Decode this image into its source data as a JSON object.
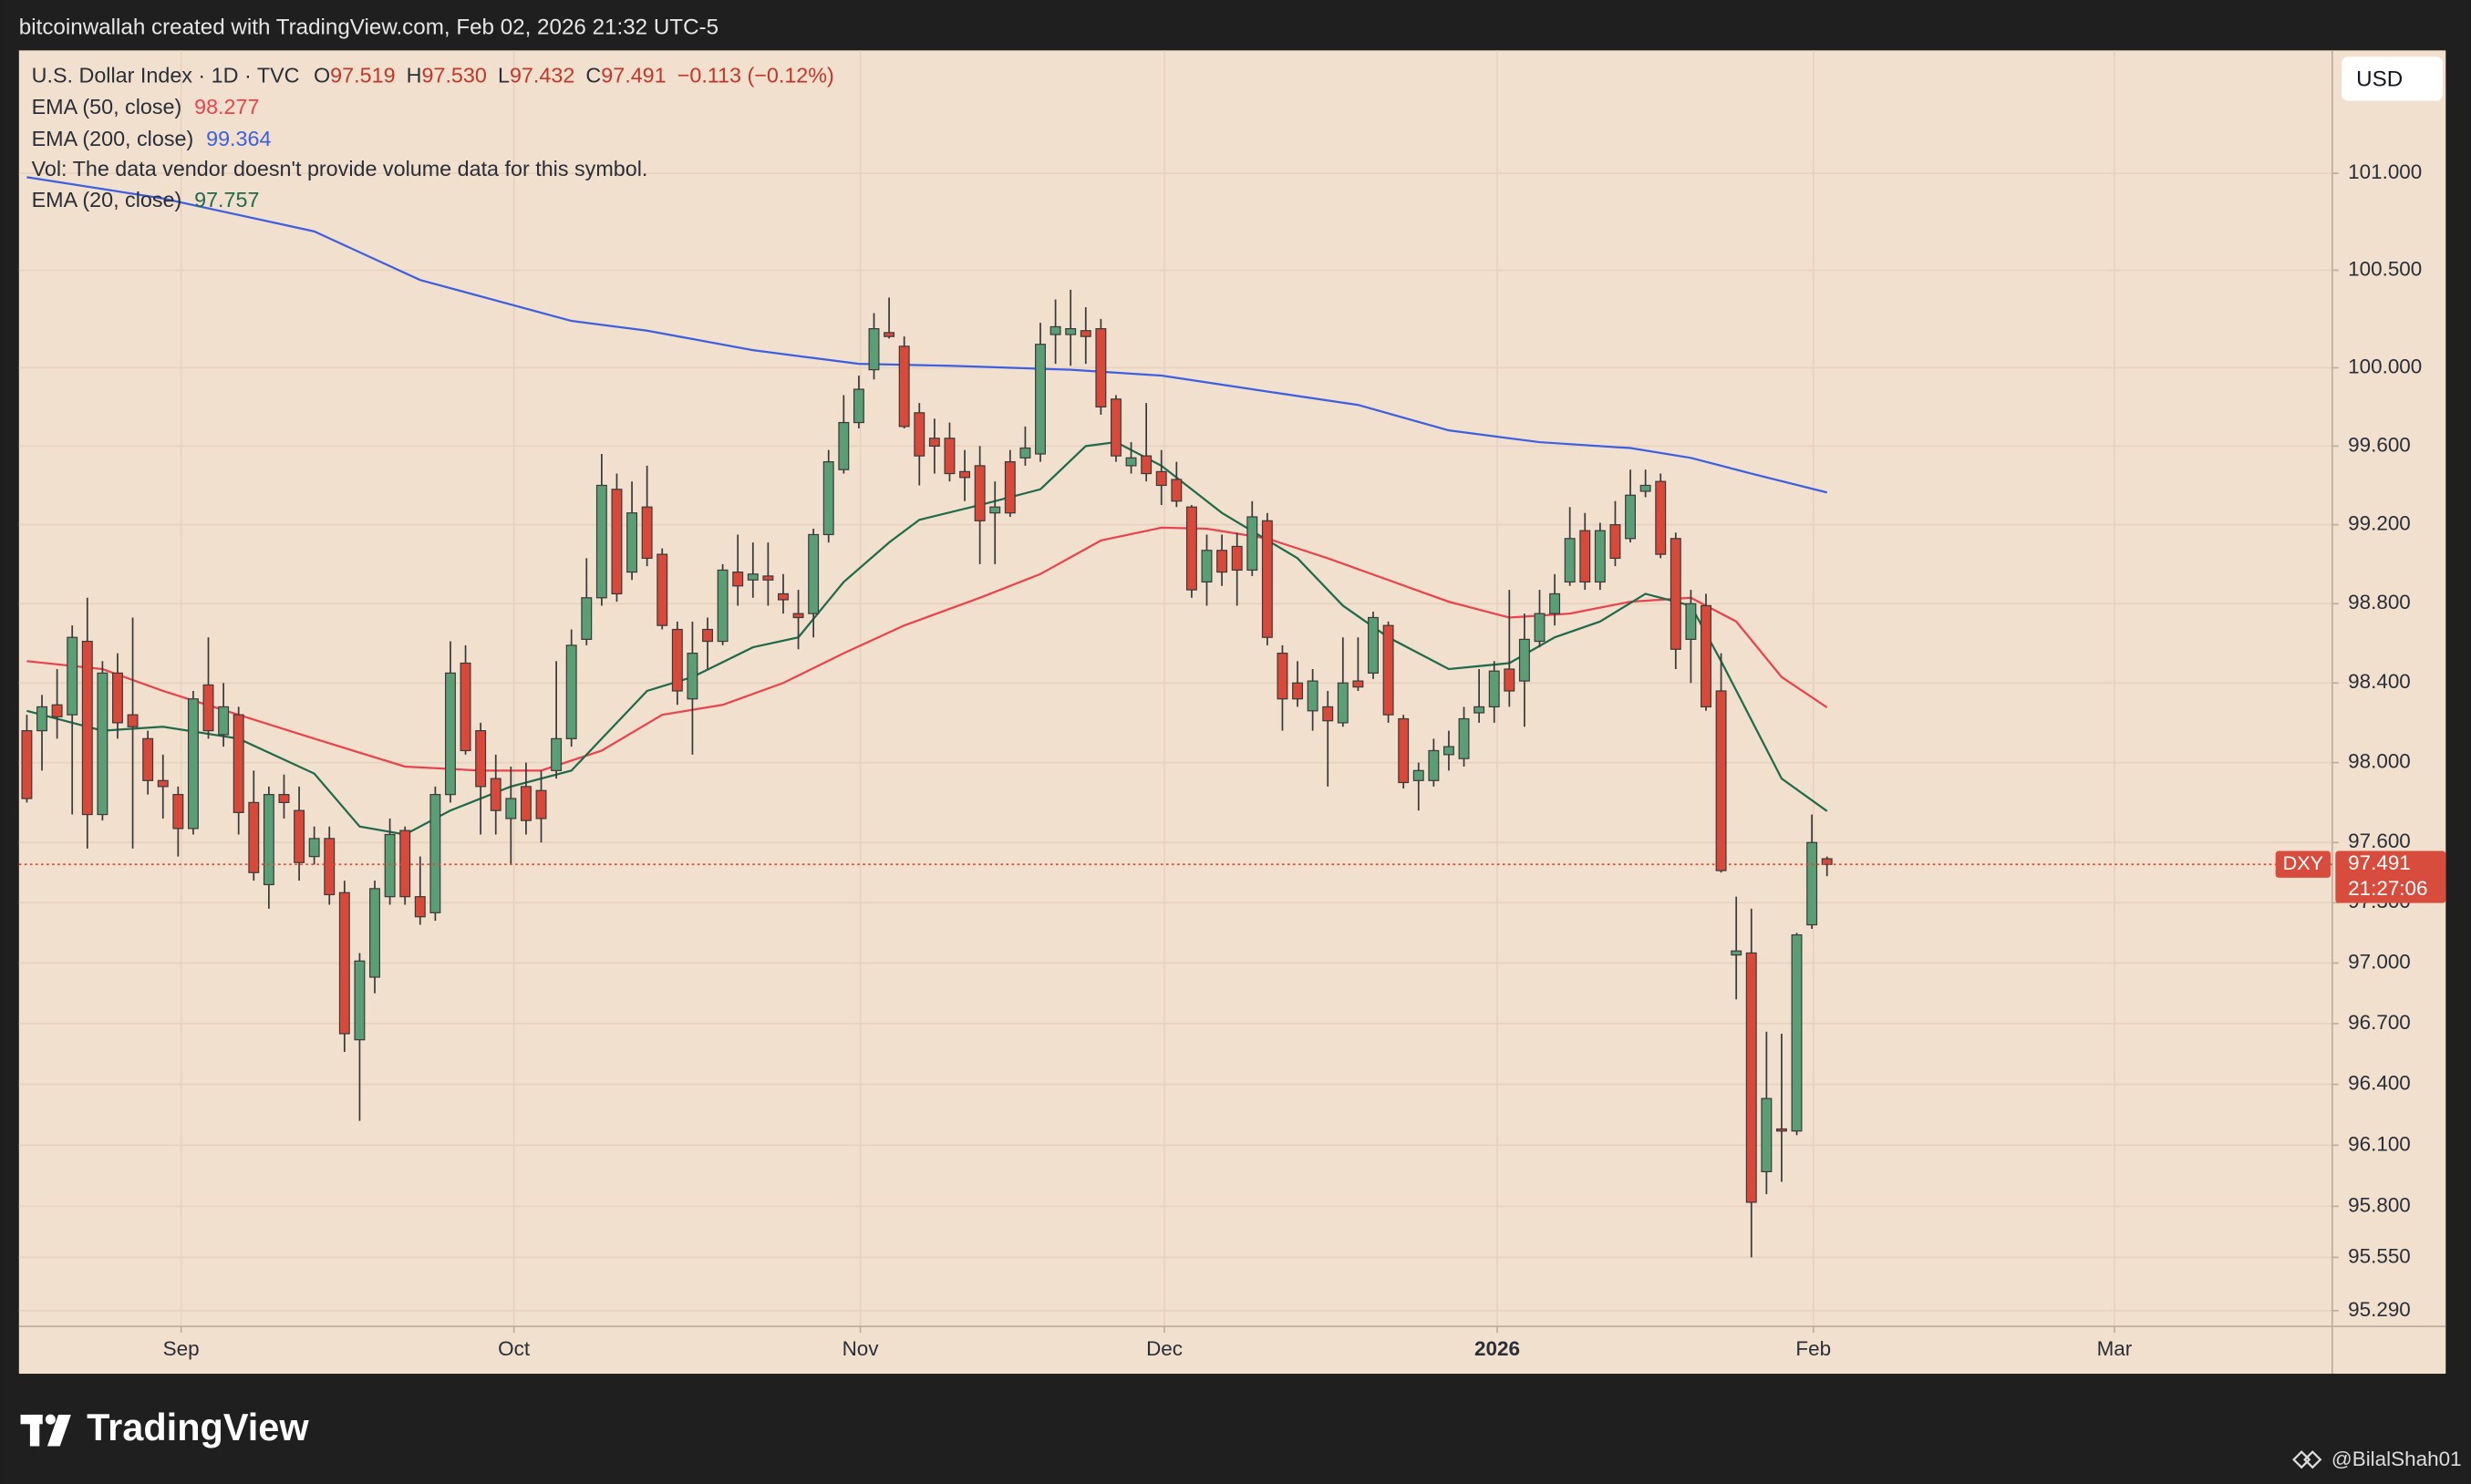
{
  "chart_data": {
    "type": "candlestick",
    "credit": "bitcoinwallah created with TradingView.com, Feb 02, 2026 21:32 UTC-5",
    "title": "U.S. Dollar Index · 1D · TVC",
    "ohlc_labels": [
      {
        "key": "O",
        "label": "97.519"
      },
      {
        "key": "H",
        "label": "97.530"
      },
      {
        "key": "L",
        "label": "97.432"
      },
      {
        "key": "C",
        "label": "97.491"
      }
    ],
    "change": "−0.113 (−0.12%)",
    "volume_note": "Vol: The data vendor doesn't provide volume data for this symbol.",
    "currency": "USD",
    "symbol": "DXY",
    "countdown": "21:27:06",
    "brand": "TradingView",
    "watermark": "@BilalShah01",
    "up_color": "#5a9e75",
    "down_color": "#d9493a",
    "log_scale": true,
    "grid": true,
    "x": [
      0,
      1,
      2,
      3,
      4,
      5,
      6,
      7,
      8,
      9,
      10,
      11,
      12,
      13,
      14,
      15,
      16,
      17,
      18,
      19,
      20,
      21,
      22,
      23,
      24,
      25,
      26,
      27,
      28,
      29,
      30,
      31,
      32,
      33,
      34,
      35,
      36,
      37,
      38,
      39,
      40,
      41,
      42,
      43,
      44,
      45,
      46,
      47,
      48,
      49,
      50,
      51,
      52,
      53,
      54,
      55,
      56,
      57,
      58,
      59,
      60,
      61,
      62,
      63,
      64,
      65,
      66,
      67,
      68,
      69,
      70,
      71,
      72,
      73,
      74,
      75,
      76,
      77,
      78,
      79,
      80,
      81,
      82,
      83,
      84,
      85,
      86,
      87,
      88,
      89,
      90,
      91,
      92,
      93,
      94,
      95,
      96,
      97,
      98,
      99,
      100,
      101,
      102,
      103,
      104,
      105,
      106,
      107,
      108,
      109,
      110,
      111,
      112,
      113,
      114,
      115,
      116,
      117,
      118,
      119
    ],
    "open": [
      98.16,
      98.16,
      98.29,
      98.24,
      98.61,
      97.74,
      98.45,
      98.24,
      98.12,
      97.91,
      97.84,
      97.67,
      98.39,
      98.14,
      98.24,
      97.8,
      97.39,
      97.84,
      97.76,
      97.53,
      97.62,
      97.35,
      96.62,
      96.93,
      97.33,
      97.66,
      97.33,
      97.25,
      97.84,
      98.5,
      98.16,
      97.92,
      97.72,
      97.88,
      97.86,
      97.96,
      98.12,
      98.62,
      98.83,
      99.38,
      98.96,
      99.29,
      99.05,
      98.67,
      98.32,
      98.67,
      98.61,
      98.96,
      98.92,
      98.94,
      98.85,
      98.75,
      98.75,
      99.15,
      99.48,
      99.72,
      99.99,
      100.18,
      100.11,
      99.77,
      99.64,
      99.64,
      99.47,
      99.5,
      99.26,
      99.52,
      99.54,
      99.56,
      100.17,
      100.17,
      100.19,
      100.2,
      99.84,
      99.5,
      99.55,
      99.47,
      99.43,
      99.29,
      98.91,
      99.07,
      99.09,
      98.97,
      99.22,
      98.55,
      98.4,
      98.26,
      98.28,
      98.2,
      98.41,
      98.45,
      98.69,
      98.22,
      97.91,
      97.91,
      98.04,
      98.02,
      98.25,
      98.28,
      98.47,
      98.41,
      98.61,
      98.75,
      98.91,
      99.17,
      98.91,
      99.2,
      99.13,
      99.37,
      99.42,
      99.13,
      98.62,
      98.79,
      98.36,
      97.04,
      97.05,
      95.97,
      96.18,
      96.17,
      97.19,
      97.519
    ],
    "high": [
      98.24,
      98.34,
      98.47,
      98.69,
      98.83,
      98.51,
      98.55,
      98.73,
      98.16,
      98.04,
      97.88,
      98.36,
      98.63,
      98.4,
      98.28,
      97.96,
      97.88,
      97.94,
      97.88,
      97.68,
      97.68,
      97.41,
      97.05,
      97.41,
      97.72,
      97.68,
      97.53,
      97.88,
      98.61,
      98.59,
      98.2,
      98.04,
      97.98,
      98.0,
      97.96,
      98.51,
      98.67,
      99.03,
      99.56,
      99.46,
      99.42,
      99.5,
      99.08,
      98.71,
      98.71,
      98.73,
      99.0,
      99.15,
      99.11,
      99.11,
      98.95,
      98.87,
      99.18,
      99.58,
      99.86,
      99.96,
      100.28,
      100.36,
      100.16,
      99.82,
      99.74,
      99.72,
      99.58,
      99.6,
      99.42,
      99.58,
      99.7,
      100.23,
      100.35,
      100.4,
      100.31,
      100.25,
      99.86,
      99.62,
      99.82,
      99.58,
      99.52,
      99.3,
      99.15,
      99.15,
      99.16,
      99.32,
      99.26,
      98.59,
      98.51,
      98.47,
      98.36,
      98.63,
      98.63,
      98.76,
      98.71,
      98.24,
      98.0,
      98.12,
      98.16,
      98.28,
      98.47,
      98.51,
      98.87,
      98.75,
      98.87,
      98.95,
      99.29,
      99.26,
      99.21,
      99.32,
      99.48,
      99.48,
      99.46,
      99.16,
      98.87,
      98.85,
      98.55,
      97.33,
      97.27,
      96.66,
      96.65,
      97.15,
      97.74,
      97.53
    ],
    "low": [
      97.8,
      97.96,
      98.12,
      97.74,
      97.57,
      97.71,
      98.12,
      97.57,
      97.84,
      97.72,
      97.53,
      97.64,
      98.12,
      98.08,
      97.64,
      97.41,
      97.27,
      97.72,
      97.41,
      97.49,
      97.29,
      96.56,
      96.22,
      96.85,
      97.29,
      97.29,
      97.19,
      97.21,
      97.8,
      98.04,
      97.64,
      97.64,
      97.49,
      97.64,
      97.6,
      97.92,
      98.08,
      98.59,
      98.79,
      98.81,
      98.92,
      98.99,
      98.67,
      98.29,
      98.04,
      98.47,
      98.59,
      98.79,
      98.83,
      98.79,
      98.75,
      98.57,
      98.63,
      99.11,
      99.46,
      99.69,
      99.94,
      100.15,
      99.69,
      99.4,
      99.46,
      99.42,
      99.32,
      99.0,
      99.0,
      99.24,
      99.5,
      99.52,
      100.02,
      100.01,
      100.02,
      99.76,
      99.52,
      99.46,
      99.42,
      99.3,
      99.29,
      98.83,
      98.79,
      98.89,
      98.79,
      98.94,
      98.59,
      98.16,
      98.28,
      98.16,
      97.88,
      98.18,
      98.36,
      98.42,
      98.2,
      97.87,
      97.76,
      97.88,
      97.96,
      97.98,
      98.2,
      98.2,
      98.28,
      98.18,
      98.58,
      98.69,
      98.89,
      98.87,
      98.87,
      98.99,
      99.11,
      99.34,
      99.03,
      98.47,
      98.4,
      98.26,
      97.45,
      96.82,
      95.55,
      95.86,
      95.92,
      96.15,
      97.17,
      97.432
    ],
    "close": [
      97.82,
      98.28,
      98.23,
      98.63,
      97.74,
      98.45,
      98.2,
      98.18,
      97.91,
      97.88,
      97.67,
      98.32,
      98.16,
      98.28,
      97.75,
      97.45,
      97.84,
      97.8,
      97.5,
      97.62,
      97.34,
      96.65,
      97.01,
      97.37,
      97.64,
      97.33,
      97.23,
      97.84,
      98.45,
      98.06,
      97.88,
      97.76,
      97.82,
      97.71,
      97.72,
      98.12,
      98.59,
      98.83,
      99.4,
      98.85,
      99.26,
      99.03,
      98.69,
      98.36,
      98.55,
      98.61,
      98.97,
      98.89,
      98.95,
      98.92,
      98.82,
      98.73,
      99.15,
      99.52,
      99.72,
      99.89,
      100.2,
      100.16,
      99.7,
      99.55,
      99.6,
      99.46,
      99.44,
      99.22,
      99.29,
      99.26,
      99.59,
      100.12,
      100.21,
      100.2,
      100.16,
      99.8,
      99.55,
      99.54,
      99.46,
      99.4,
      99.32,
      98.87,
      99.07,
      98.96,
      98.97,
      99.24,
      98.63,
      98.32,
      98.32,
      98.41,
      98.21,
      98.4,
      98.38,
      98.73,
      98.24,
      97.9,
      97.96,
      98.06,
      98.08,
      98.22,
      98.28,
      98.46,
      98.36,
      98.62,
      98.75,
      98.85,
      99.13,
      98.91,
      99.17,
      99.03,
      99.35,
      99.4,
      99.05,
      98.57,
      98.8,
      98.28,
      97.46,
      97.06,
      95.82,
      96.33,
      96.17,
      97.14,
      97.6,
      97.491
    ],
    "series": [
      {
        "name": "EMA (50, close)",
        "color": "#e8434f",
        "x": [
          0,
          5,
          9,
          14,
          19,
          25,
          30,
          34,
          38,
          42,
          46,
          50,
          54,
          58,
          63,
          67,
          71,
          75,
          78,
          82,
          86,
          90,
          94,
          98,
          102,
          106,
          110,
          113,
          116,
          119
        ],
        "values": [
          98.51,
          98.47,
          98.36,
          98.24,
          98.12,
          97.98,
          97.96,
          97.96,
          98.06,
          98.24,
          98.29,
          98.4,
          98.55,
          98.69,
          98.83,
          98.95,
          99.12,
          99.185,
          99.18,
          99.13,
          99.03,
          98.92,
          98.81,
          98.73,
          98.75,
          98.81,
          98.83,
          98.71,
          98.43,
          98.277
        ]
      },
      {
        "name": "EMA (200, close)",
        "color": "#3d5fe0",
        "x": [
          0,
          9,
          19,
          26,
          36,
          41,
          48,
          55,
          61,
          69,
          75,
          81,
          88,
          94,
          100,
          106,
          110,
          114,
          119
        ],
        "values": [
          100.98,
          100.87,
          100.7,
          100.45,
          100.24,
          100.19,
          100.09,
          100.02,
          100.01,
          99.99,
          99.96,
          99.89,
          99.81,
          99.68,
          99.62,
          99.59,
          99.54,
          99.46,
          99.364
        ]
      },
      {
        "name": "EMA (20, close)",
        "color": "#1f6b4a",
        "x": [
          0,
          5,
          9,
          14,
          19,
          22,
          25,
          28,
          32,
          36,
          38,
          41,
          44,
          48,
          51,
          54,
          57,
          59,
          63,
          67,
          70,
          72,
          75,
          79,
          84,
          87,
          90,
          94,
          98,
          101,
          104,
          107,
          110,
          112,
          116,
          119
        ],
        "values": [
          98.26,
          98.16,
          98.18,
          98.12,
          97.945,
          97.68,
          97.64,
          97.76,
          97.88,
          97.96,
          98.12,
          98.36,
          98.43,
          98.58,
          98.63,
          98.91,
          99.11,
          99.225,
          99.3,
          99.38,
          99.6,
          99.62,
          99.5,
          99.26,
          99.03,
          98.79,
          98.63,
          98.47,
          98.5,
          98.63,
          98.71,
          98.85,
          98.79,
          98.51,
          97.92,
          97.757
        ]
      }
    ],
    "xlim": [
      -0.52,
      152.4
    ],
    "xticks": [
      {
        "value": 10.2,
        "label": "Sep"
      },
      {
        "value": 32.2,
        "label": "Oct"
      },
      {
        "value": 55.1,
        "label": "Nov"
      },
      {
        "value": 75.2,
        "label": "Dec"
      },
      {
        "value": 97.2,
        "label": "2026"
      },
      {
        "value": 118.1,
        "label": "Feb"
      },
      {
        "value": 138.0,
        "label": "Mar"
      }
    ],
    "ylim": [
      95.213,
      101.637
    ],
    "yticks": [
      {
        "value": 95.29,
        "label": "95.290"
      },
      {
        "value": 95.55,
        "label": "95.550"
      },
      {
        "value": 95.8,
        "label": "95.800"
      },
      {
        "value": 96.1,
        "label": "96.100"
      },
      {
        "value": 96.4,
        "label": "96.400"
      },
      {
        "value": 96.7,
        "label": "96.700"
      },
      {
        "value": 97,
        "label": "97.000"
      },
      {
        "value": 97.3,
        "label": "97.300"
      },
      {
        "value": 97.6,
        "label": "97.600"
      },
      {
        "value": 98,
        "label": "98.000"
      },
      {
        "value": 98.4,
        "label": "98.400"
      },
      {
        "value": 98.8,
        "label": "98.800"
      },
      {
        "value": 99.2,
        "label": "99.200"
      },
      {
        "value": 99.6,
        "label": "99.600"
      },
      {
        "value": 100,
        "label": "100.000"
      },
      {
        "value": 100.5,
        "label": "100.500"
      },
      {
        "value": 101,
        "label": "101.000"
      }
    ]
  }
}
